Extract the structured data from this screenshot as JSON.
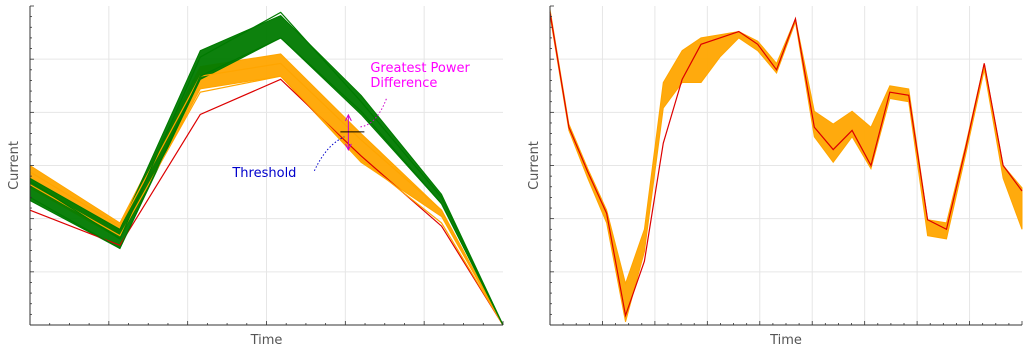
{
  "chart_data": [
    {
      "type": "line",
      "xlabel": "Time",
      "ylabel": "Current",
      "grid": true,
      "xlim": [
        0,
        10
      ],
      "ylim": [
        0,
        1
      ],
      "x": [
        0,
        1.9,
        3.6,
        5.3,
        7.0,
        8.7,
        10
      ],
      "series": [
        {
          "values": [
            0.36,
            0.25,
            0.66,
            0.77,
            0.53,
            0.31,
            0.0
          ],
          "color": "#dd0000"
        },
        {
          "values": [
            0.48,
            0.31,
            0.78,
            0.82,
            0.58,
            0.36,
            0.0
          ],
          "color": "#ffa500"
        },
        {
          "values": [
            0.44,
            0.28,
            0.73,
            0.78,
            0.52,
            0.32,
            0.0
          ],
          "color": "#ffa500"
        },
        {
          "values": [
            0.45,
            0.27,
            0.84,
            0.98,
            0.7,
            0.4,
            0.0
          ],
          "color": "#007a00"
        },
        {
          "values": [
            0.4,
            0.24,
            0.78,
            0.9,
            0.67,
            0.38,
            0.0
          ],
          "color": "#007a00"
        }
      ],
      "band_orange": {
        "upper": [
          0.5,
          0.32,
          0.81,
          0.85,
          0.6,
          0.36,
          0.0
        ],
        "lower": [
          0.43,
          0.27,
          0.74,
          0.78,
          0.51,
          0.34,
          0.0
        ],
        "color": "#ffa500"
      },
      "band_green": {
        "upper": [
          0.46,
          0.3,
          0.86,
          0.97,
          0.72,
          0.41,
          0.0
        ],
        "lower": [
          0.39,
          0.24,
          0.77,
          0.9,
          0.66,
          0.38,
          0.0
        ],
        "color": "#007a00"
      },
      "annotations": {
        "power": {
          "text_line1": "Greatest Power",
          "text_line2": "Difference",
          "color": "#ff00ff",
          "x": 6.9,
          "y": 0.64
        },
        "threshold": {
          "text": "Threshold",
          "color": "#0000cc",
          "x": 6.7,
          "y": 0.57
        }
      }
    },
    {
      "type": "line",
      "xlabel": "Time",
      "ylabel": "Current",
      "grid": true,
      "xlim": [
        0,
        25
      ],
      "ylim": [
        0,
        1
      ],
      "x": [
        0,
        1,
        2,
        3,
        4,
        5,
        6,
        7,
        8,
        9,
        10,
        11,
        12,
        13,
        14,
        15,
        16,
        17,
        18,
        19,
        20,
        21,
        22,
        23,
        24,
        25
      ],
      "series": [
        {
          "values": [
            0.98,
            0.62,
            0.48,
            0.35,
            0.03,
            0.2,
            0.57,
            0.77,
            0.88,
            0.9,
            0.92,
            0.88,
            0.8,
            0.96,
            0.62,
            0.55,
            0.61,
            0.5,
            0.73,
            0.72,
            0.33,
            0.3,
            0.55,
            0.82,
            0.5,
            0.42
          ],
          "color": "#dd0000"
        }
      ],
      "band": {
        "upper": [
          0.99,
          0.63,
          0.49,
          0.36,
          0.13,
          0.3,
          0.76,
          0.86,
          0.9,
          0.91,
          0.92,
          0.89,
          0.82,
          0.96,
          0.67,
          0.63,
          0.67,
          0.62,
          0.75,
          0.74,
          0.33,
          0.32,
          0.56,
          0.82,
          0.5,
          0.43
        ],
        "lower": [
          0.97,
          0.61,
          0.46,
          0.32,
          0.01,
          0.23,
          0.68,
          0.76,
          0.76,
          0.84,
          0.9,
          0.86,
          0.79,
          0.95,
          0.59,
          0.51,
          0.59,
          0.49,
          0.71,
          0.7,
          0.28,
          0.27,
          0.53,
          0.8,
          0.46,
          0.3
        ],
        "color": "#ffa500"
      }
    }
  ]
}
